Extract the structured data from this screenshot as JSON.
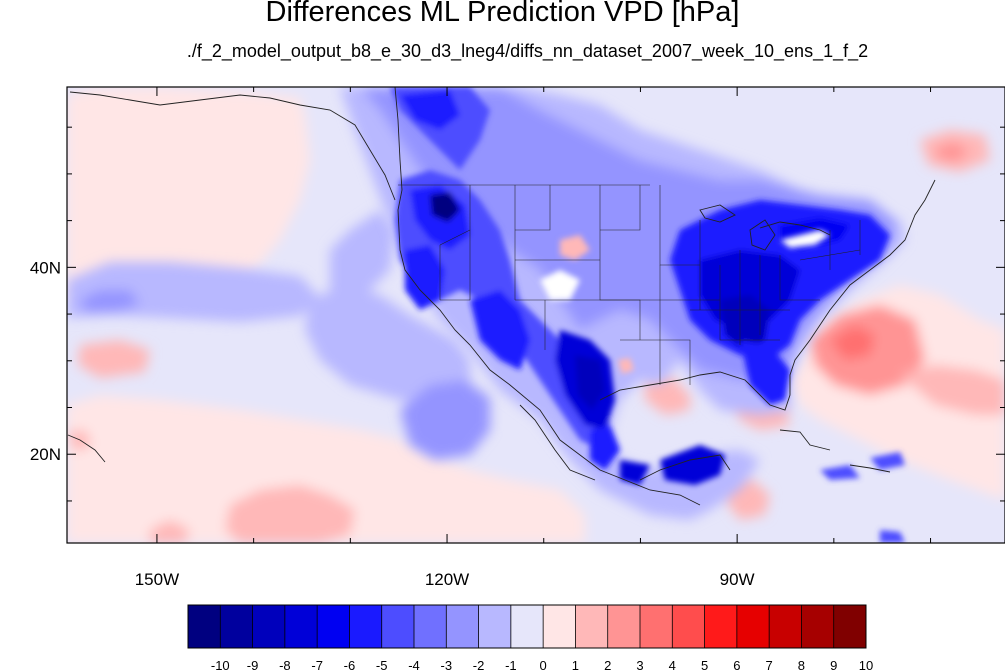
{
  "title": "Differences ML Prediction VPD [hPa]",
  "subtitle": "./f_2_model_output_b8_e_30_d3_lneg4/diffs_nn_dataset_2007_week_10_ens_1_f_2",
  "map": {
    "lon_range": [
      -159.3,
      -62.3
    ],
    "lat_range": [
      10.5,
      59.3
    ],
    "lon_ticks": [
      {
        "value": -150,
        "label": "150W"
      },
      {
        "value": -120,
        "label": "120W"
      },
      {
        "value": -90,
        "label": "90W"
      }
    ],
    "lat_ticks": [
      {
        "value": 40,
        "label": "40N"
      },
      {
        "value": 20,
        "label": "20N"
      }
    ]
  },
  "colorbar": {
    "labels": [
      "-10",
      "-9",
      "-8",
      "-7",
      "-6",
      "-5",
      "-4",
      "-3",
      "-2",
      "-1",
      "0",
      "1",
      "2",
      "3",
      "4",
      "5",
      "6",
      "7",
      "8",
      "9",
      "10"
    ],
    "colors": [
      "#000080",
      "#00009e",
      "#0000bc",
      "#0000d8",
      "#0000f2",
      "#1a1aff",
      "#4d4dff",
      "#7070ff",
      "#9494ff",
      "#b8b8ff",
      "#e6e6fa",
      "#ffe6e6",
      "#ffb8b8",
      "#ff9494",
      "#ff7070",
      "#ff4d4d",
      "#ff1a1a",
      "#e60000",
      "#c80000",
      "#a60000",
      "#800000"
    ]
  }
}
